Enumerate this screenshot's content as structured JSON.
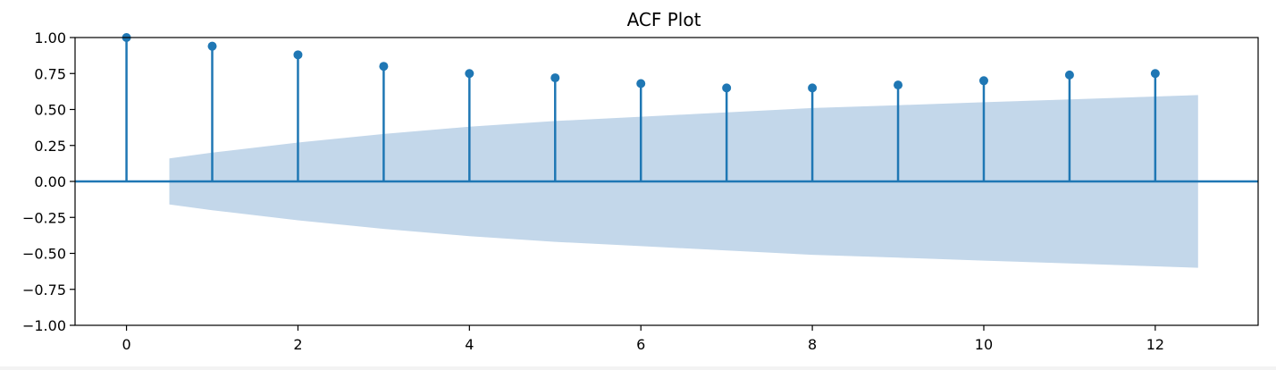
{
  "chart_data": {
    "type": "stem",
    "title": "ACF Plot",
    "xlabel": "",
    "ylabel": "",
    "x": [
      0,
      1,
      2,
      3,
      4,
      5,
      6,
      7,
      8,
      9,
      10,
      11,
      12
    ],
    "values": [
      1.0,
      0.94,
      0.88,
      0.8,
      0.75,
      0.72,
      0.68,
      0.65,
      0.65,
      0.67,
      0.7,
      0.74,
      0.75
    ],
    "confidence_band": {
      "x": [
        0.5,
        1,
        2,
        3,
        4,
        5,
        6,
        7,
        8,
        9,
        10,
        11,
        12,
        12.5
      ],
      "upper": [
        0.16,
        0.2,
        0.27,
        0.33,
        0.38,
        0.42,
        0.45,
        0.48,
        0.51,
        0.53,
        0.55,
        0.57,
        0.59,
        0.6
      ]
    },
    "xlim": [
      -0.6,
      13.2
    ],
    "ylim": [
      -1.0,
      1.0
    ],
    "xticks": [
      "0",
      "2",
      "4",
      "6",
      "8",
      "10",
      "12"
    ],
    "yticks": [
      "1.00",
      "0.75",
      "0.50",
      "0.25",
      "0.00",
      "−0.25",
      "−0.50",
      "−0.75",
      "−1.00"
    ],
    "grid": false,
    "colors": {
      "stem": "#1f77b4",
      "band": "#c3d7ea",
      "axes": "#000000"
    }
  }
}
